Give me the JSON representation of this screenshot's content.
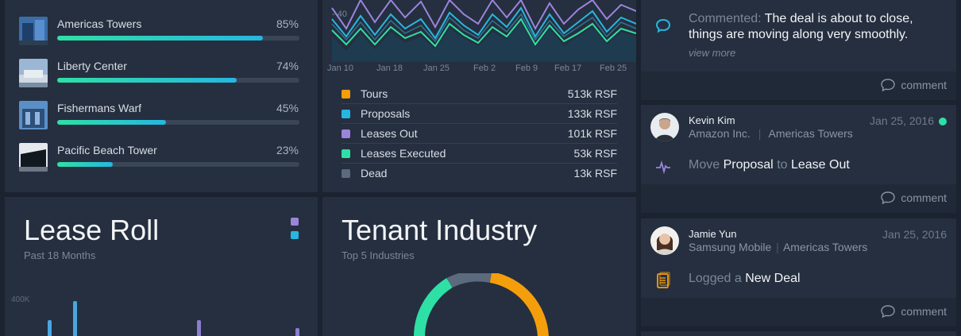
{
  "colors": {
    "background": "#1b2230",
    "panel": "#252f3f",
    "accent_green": "#2ee0a5",
    "accent_blue": "#27b6e0",
    "purple": "#9b84dc",
    "orange": "#f59e0b",
    "gray": "#5c6a7e"
  },
  "properties": [
    {
      "name": "Americas Towers",
      "pct": "85%",
      "progress": 0.85
    },
    {
      "name": "Liberty Center",
      "pct": "74%",
      "progress": 0.74
    },
    {
      "name": "Fishermans Warf",
      "pct": "45%",
      "progress": 0.45
    },
    {
      "name": "Pacific Beach Tower",
      "pct": "23%",
      "progress": 0.23
    }
  ],
  "activity": {
    "y_axis_label": "- 40",
    "x_labels": [
      "Jan 10",
      "Jan 18",
      "Jan 25",
      "Feb 2",
      "Feb 9",
      "Feb 17",
      "Feb 25"
    ],
    "legend": [
      {
        "label": "Tours",
        "value": "513k RSF",
        "color": "#f59e0b"
      },
      {
        "label": "Proposals",
        "value": "133k RSF",
        "color": "#27b6e0"
      },
      {
        "label": "Leases Out",
        "value": "101k RSF",
        "color": "#9b84dc"
      },
      {
        "label": "Leases Executed",
        "value": "53k RSF",
        "color": "#2ee0a5"
      },
      {
        "label": "Dead",
        "value": "13k RSF",
        "color": "#5c6a7e"
      }
    ]
  },
  "lease_roll": {
    "title": "Lease Roll",
    "subtitle": "Past 18 Months",
    "y_label": "400K"
  },
  "tenant_industry": {
    "title": "Tenant Industry",
    "subtitle": "Top 5 Industries"
  },
  "feed": {
    "top_card": {
      "verb": "Commented:",
      "text_line1": "The deal is about to close,",
      "text_line2": "things are moving along very smoothly.",
      "view_more": "view more"
    },
    "comment_label": "comment",
    "card2": {
      "name": "Kevin Kim",
      "company": "Amazon Inc.",
      "property": "Americas Towers",
      "date": "Jan 25, 2016",
      "action_verb": "Move",
      "action_obj1": "Proposal",
      "action_to": "to",
      "action_obj2": "Lease Out"
    },
    "card3": {
      "name": "Jamie Yun",
      "company": "Samsung Mobile",
      "property": "Americas Towers",
      "date": "Jan 25, 2016",
      "action_verb": "Logged a",
      "action_obj": "New Deal"
    }
  }
}
